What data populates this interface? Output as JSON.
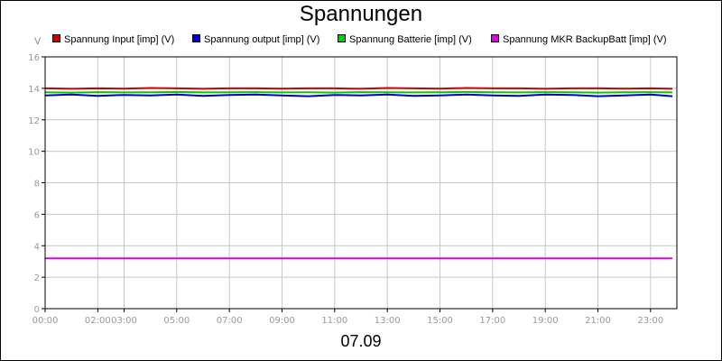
{
  "chart_data": {
    "type": "line",
    "title": "Spannungen",
    "subtitle": "07.09",
    "unit_label": "V",
    "ylim": [
      0,
      16
    ],
    "yticks": [
      0,
      2,
      4,
      6,
      8,
      10,
      12,
      14,
      16
    ],
    "xlim": [
      "00:00",
      "24:00"
    ],
    "xticks": [
      "00:00",
      "02:00",
      "03:00",
      "05:00",
      "07:00",
      "09:00",
      "11:00",
      "13:00",
      "15:00",
      "17:00",
      "19:00",
      "21:00",
      "23:00"
    ],
    "grid": true,
    "legend_position": "top",
    "series": [
      {
        "name": "Spannung Input [imp] (V)",
        "color": "#cc0000",
        "x": [
          "00:00",
          "01:00",
          "02:00",
          "03:00",
          "04:00",
          "05:00",
          "06:00",
          "07:00",
          "08:00",
          "09:00",
          "10:00",
          "11:00",
          "12:00",
          "13:00",
          "14:00",
          "15:00",
          "16:00",
          "17:00",
          "18:00",
          "19:00",
          "20:00",
          "21:00",
          "22:00",
          "23:00",
          "23:50"
        ],
        "y": [
          14.0,
          13.97,
          14.0,
          13.98,
          14.02,
          14.0,
          13.97,
          14.0,
          14.0,
          13.98,
          14.0,
          14.0,
          13.97,
          14.02,
          14.0,
          13.98,
          14.02,
          14.0,
          14.0,
          13.97,
          14.0,
          14.0,
          13.98,
          14.0,
          13.97
        ]
      },
      {
        "name": "Spannung output [imp] (V)",
        "color": "#0000cc",
        "x": [
          "00:00",
          "01:00",
          "02:00",
          "03:00",
          "04:00",
          "05:00",
          "06:00",
          "07:00",
          "08:00",
          "09:00",
          "10:00",
          "11:00",
          "12:00",
          "13:00",
          "14:00",
          "15:00",
          "16:00",
          "17:00",
          "18:00",
          "19:00",
          "20:00",
          "21:00",
          "22:00",
          "23:00",
          "23:50"
        ],
        "y": [
          13.55,
          13.6,
          13.52,
          13.58,
          13.55,
          13.6,
          13.52,
          13.58,
          13.6,
          13.55,
          13.5,
          13.58,
          13.55,
          13.6,
          13.52,
          13.55,
          13.6,
          13.55,
          13.52,
          13.6,
          13.58,
          13.5,
          13.55,
          13.6,
          13.5
        ]
      },
      {
        "name": "Spannung Batterie [imp] (V)",
        "color": "#00cc00",
        "x": [
          "00:00",
          "01:00",
          "02:00",
          "03:00",
          "04:00",
          "05:00",
          "06:00",
          "07:00",
          "08:00",
          "09:00",
          "10:00",
          "11:00",
          "12:00",
          "13:00",
          "14:00",
          "15:00",
          "16:00",
          "17:00",
          "18:00",
          "19:00",
          "20:00",
          "21:00",
          "22:00",
          "23:00",
          "23:50"
        ],
        "y": [
          13.75,
          13.73,
          13.76,
          13.74,
          13.75,
          13.77,
          13.74,
          13.75,
          13.76,
          13.74,
          13.75,
          13.73,
          13.76,
          13.75,
          13.74,
          13.75,
          13.77,
          13.75,
          13.74,
          13.76,
          13.75,
          13.73,
          13.75,
          13.76,
          13.74
        ]
      },
      {
        "name": "Spannung MKR BackupBatt [imp] (V)",
        "color": "#e000e0",
        "x": [
          "00:00",
          "12:00",
          "23:50"
        ],
        "y": [
          3.2,
          3.2,
          3.2
        ]
      }
    ]
  }
}
